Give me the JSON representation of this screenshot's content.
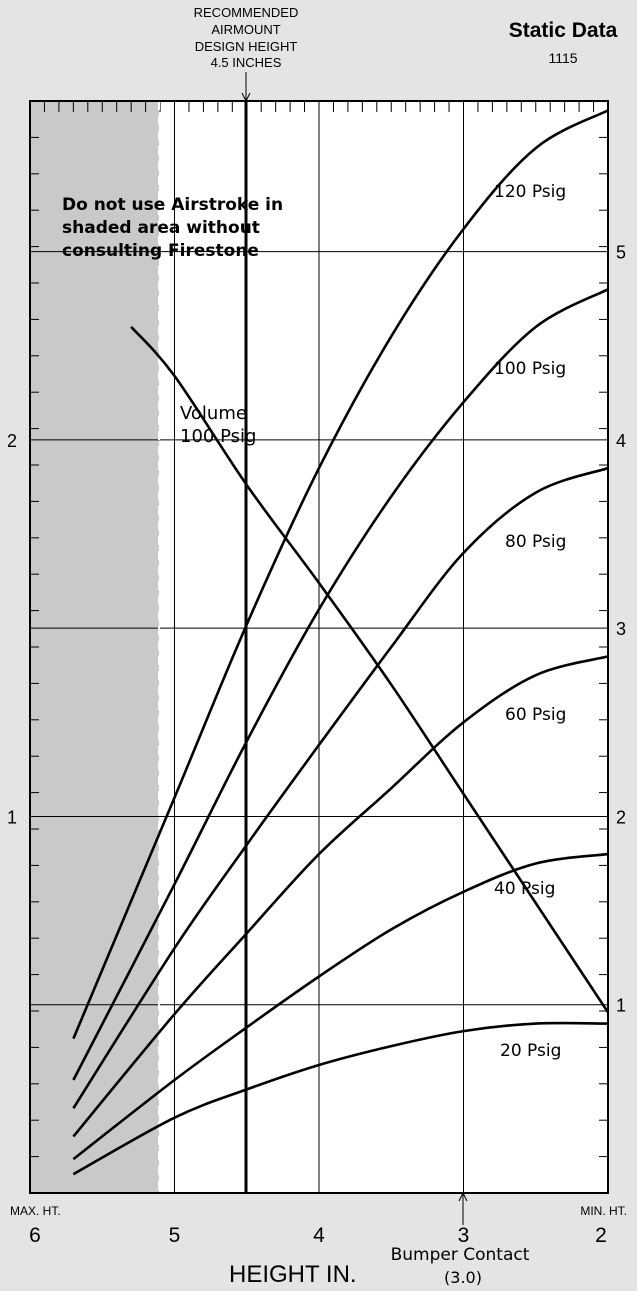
{
  "header": {
    "recommended_lines": [
      "RECOMMENDED",
      "AIRMOUNT",
      "DESIGN HEIGHT",
      "4.5 INCHES"
    ],
    "title": "Static Data",
    "subtitle": "1115"
  },
  "warning_lines": [
    "Do not use Airstroke in",
    "shaded area without",
    "consulting Firestone"
  ],
  "footer": {
    "max_label": "MAX. HT.",
    "min_label": "MIN. HT.",
    "xlabel": "HEIGHT IN.",
    "bumper_label": "Bumper Contact",
    "bumper_value": "(3.0)"
  },
  "chart_data": {
    "type": "line",
    "title": "Static Data",
    "xlabel": "HEIGHT IN.",
    "x_axis": {
      "min": 2,
      "max": 6,
      "reversed": true,
      "ticks": [
        6,
        5,
        4,
        3,
        2
      ]
    },
    "left_axis": {
      "min": 0,
      "max": 2.9,
      "ticks": [
        1,
        2
      ]
    },
    "right_axis": {
      "min": 0,
      "max": 5.8,
      "ticks": [
        1,
        2,
        3,
        4,
        5
      ]
    },
    "grid": true,
    "shaded_region": {
      "x_from": 6,
      "x_to": 5.1
    },
    "design_height": 4.5,
    "bumper_contact": 3.0,
    "series": [
      {
        "name": "120 Psig",
        "axis": "right",
        "x": [
          5.7,
          5.0,
          4.5,
          4.0,
          3.5,
          3.0,
          2.5,
          2.0
        ],
        "y": [
          0.82,
          2.1,
          3.02,
          3.85,
          4.55,
          5.12,
          5.55,
          5.75
        ]
      },
      {
        "name": "100 Psig",
        "axis": "right",
        "x": [
          5.7,
          5.0,
          4.5,
          4.0,
          3.5,
          3.0,
          2.5,
          2.0
        ],
        "y": [
          0.6,
          1.64,
          2.4,
          3.1,
          3.7,
          4.2,
          4.6,
          4.8
        ]
      },
      {
        "name": "80 Psig",
        "axis": "right",
        "x": [
          5.7,
          5.0,
          4.5,
          4.0,
          3.5,
          3.0,
          2.5,
          2.0
        ],
        "y": [
          0.45,
          1.3,
          1.85,
          2.38,
          2.9,
          3.4,
          3.72,
          3.85
        ]
      },
      {
        "name": "60 Psig",
        "axis": "right",
        "x": [
          5.7,
          5.0,
          4.5,
          4.0,
          3.5,
          3.0,
          2.5,
          2.0
        ],
        "y": [
          0.3,
          0.95,
          1.38,
          1.8,
          2.15,
          2.5,
          2.75,
          2.85
        ]
      },
      {
        "name": "40 Psig",
        "axis": "right",
        "x": [
          5.7,
          5.0,
          4.5,
          4.0,
          3.5,
          3.0,
          2.5,
          2.0
        ],
        "y": [
          0.18,
          0.6,
          0.88,
          1.15,
          1.4,
          1.6,
          1.75,
          1.8
        ]
      },
      {
        "name": "20 Psig",
        "axis": "right",
        "x": [
          5.7,
          5.0,
          4.5,
          4.0,
          3.5,
          3.0,
          2.5,
          2.0
        ],
        "y": [
          0.1,
          0.4,
          0.55,
          0.68,
          0.78,
          0.86,
          0.9,
          0.9
        ]
      },
      {
        "name": "Volume 100 Psig",
        "axis": "left",
        "x": [
          5.3,
          5.0,
          4.5,
          4.0,
          3.5,
          3.0,
          2.5,
          2.0
        ],
        "y": [
          2.3,
          2.17,
          1.88,
          1.62,
          1.35,
          1.06,
          0.77,
          0.48
        ]
      }
    ]
  }
}
